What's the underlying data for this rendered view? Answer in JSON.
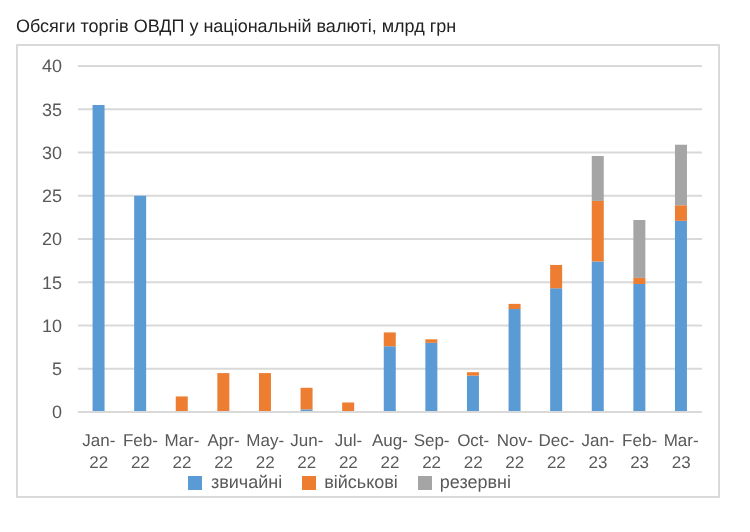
{
  "chart_data": {
    "type": "bar",
    "title": "Обсяги торгів ОВДП у національній валюті, млрд грн",
    "categories": [
      "Jan-22",
      "Feb-22",
      "Mar-22",
      "Apr-22",
      "May-22",
      "Jun-22",
      "Jul-22",
      "Aug-22",
      "Sep-22",
      "Oct-22",
      "Nov-22",
      "Dec-22",
      "Jan-23",
      "Feb-23",
      "Mar-23"
    ],
    "series": [
      {
        "name": "звичайні",
        "color": "#5b9bd5",
        "values": [
          35.5,
          25.0,
          0,
          0,
          0,
          0.3,
          0,
          7.6,
          8.0,
          4.2,
          11.9,
          14.3,
          17.4,
          14.8,
          22.1
        ]
      },
      {
        "name": "військові",
        "color": "#ed7d31",
        "values": [
          0,
          0,
          1.8,
          4.5,
          4.5,
          2.5,
          1.1,
          1.6,
          0.4,
          0.4,
          0.6,
          2.7,
          7.0,
          0.7,
          1.8
        ]
      },
      {
        "name": "резервні",
        "color": "#a5a5a5",
        "values": [
          0,
          0,
          0,
          0,
          0,
          0,
          0,
          0,
          0,
          0,
          0,
          0,
          5.2,
          6.7,
          7.0
        ]
      }
    ],
    "stacked": true,
    "ylim": [
      0,
      40
    ],
    "yticks": [
      0,
      5,
      10,
      15,
      20,
      25,
      30,
      35,
      40
    ],
    "grid": "y",
    "legend": "bottom"
  }
}
